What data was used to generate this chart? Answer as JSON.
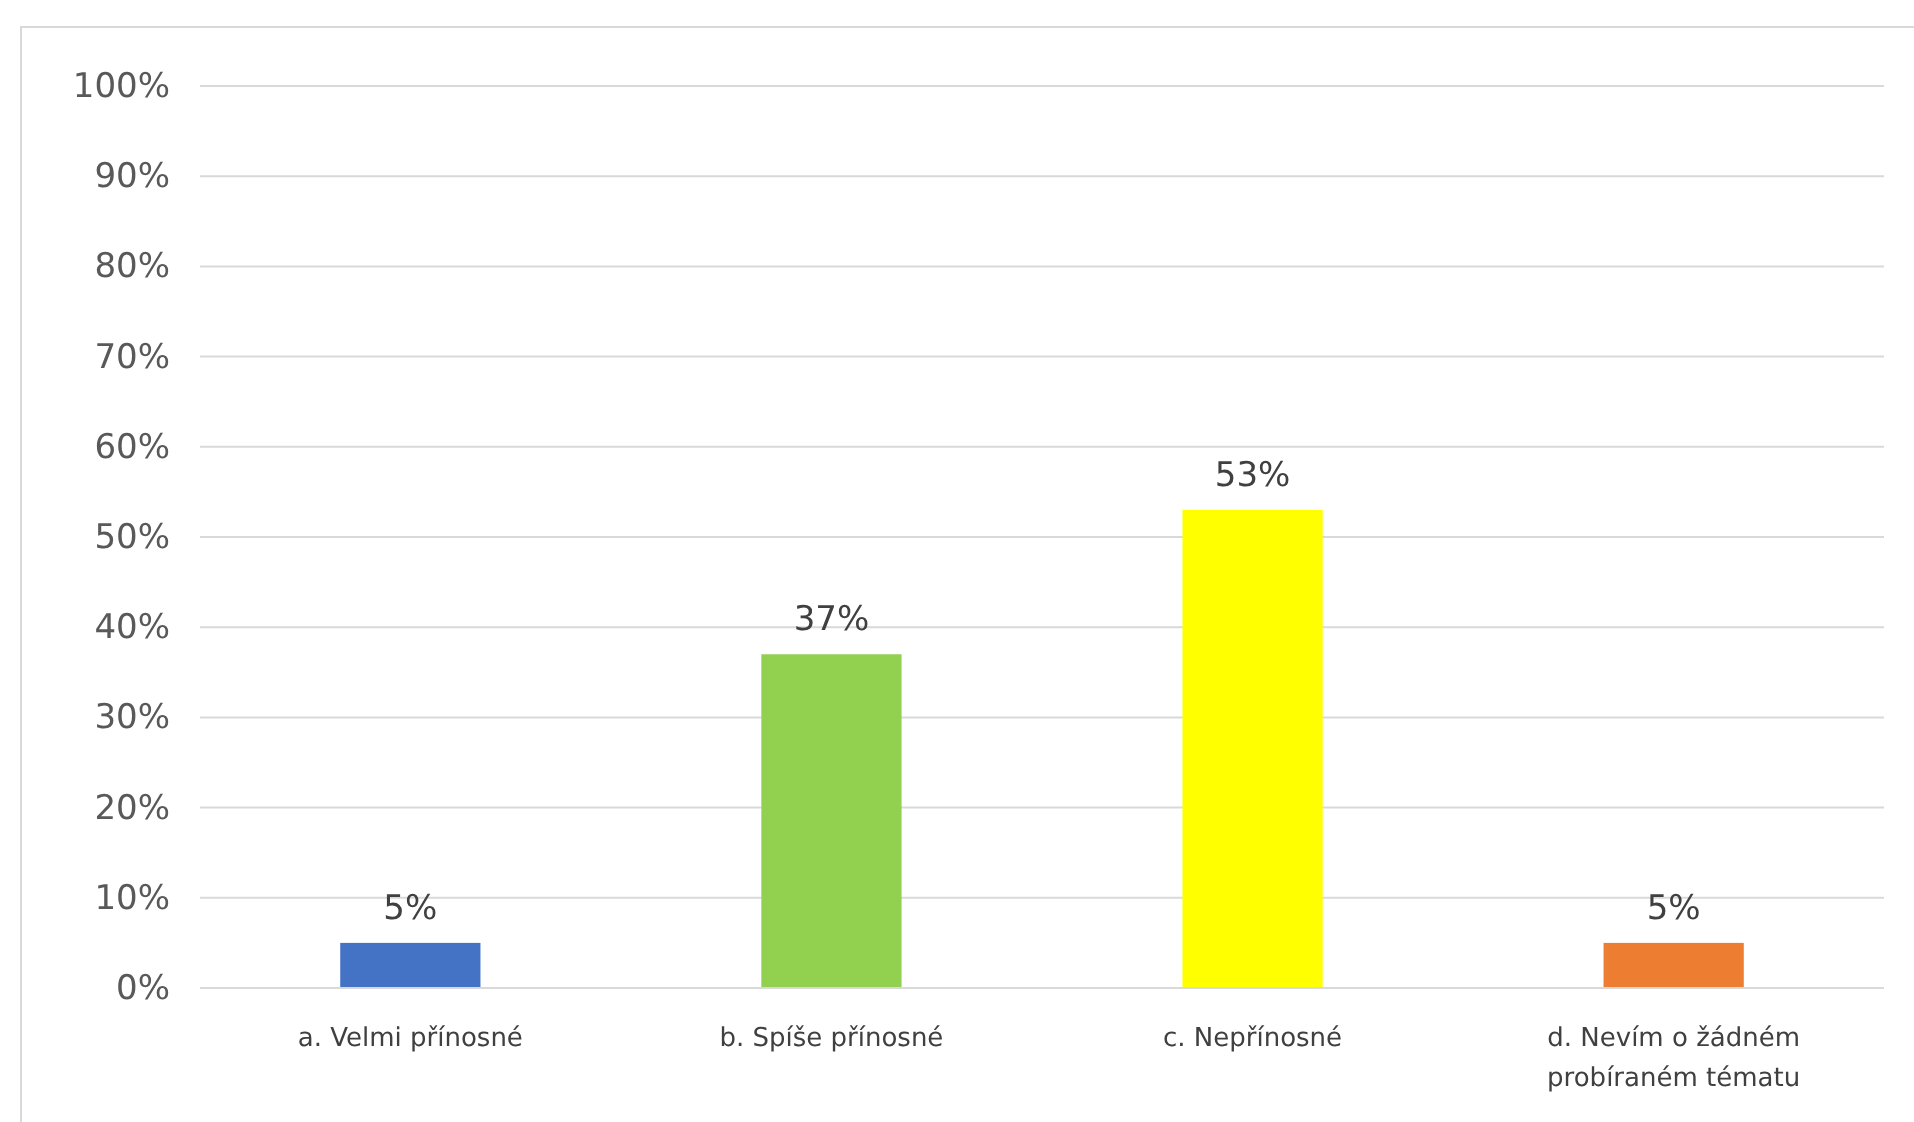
{
  "chart_data": {
    "type": "bar",
    "categories": [
      "a. Velmi přínosné",
      "b. Spíše přínosné",
      "c. Nepřínosné",
      "d. Nevím o žádném probíraném tématu"
    ],
    "values": [
      5,
      37,
      53,
      5
    ],
    "colors": [
      "#4472c4",
      "#92d050",
      "#ffff00",
      "#ed7d31"
    ],
    "value_labels": [
      "5%",
      "37%",
      "53%",
      "5%"
    ],
    "ylim": [
      0,
      100
    ],
    "yticks": [
      {
        "value": 0,
        "label": "0%"
      },
      {
        "value": 10,
        "label": "10%"
      },
      {
        "value": 20,
        "label": "20%"
      },
      {
        "value": 30,
        "label": "30%"
      },
      {
        "value": 40,
        "label": "40%"
      },
      {
        "value": 50,
        "label": "50%"
      },
      {
        "value": 60,
        "label": "60%"
      },
      {
        "value": 70,
        "label": "70%"
      },
      {
        "value": 80,
        "label": "80%"
      },
      {
        "value": 90,
        "label": "90%"
      },
      {
        "value": 100,
        "label": "100%"
      }
    ],
    "grid": true
  }
}
